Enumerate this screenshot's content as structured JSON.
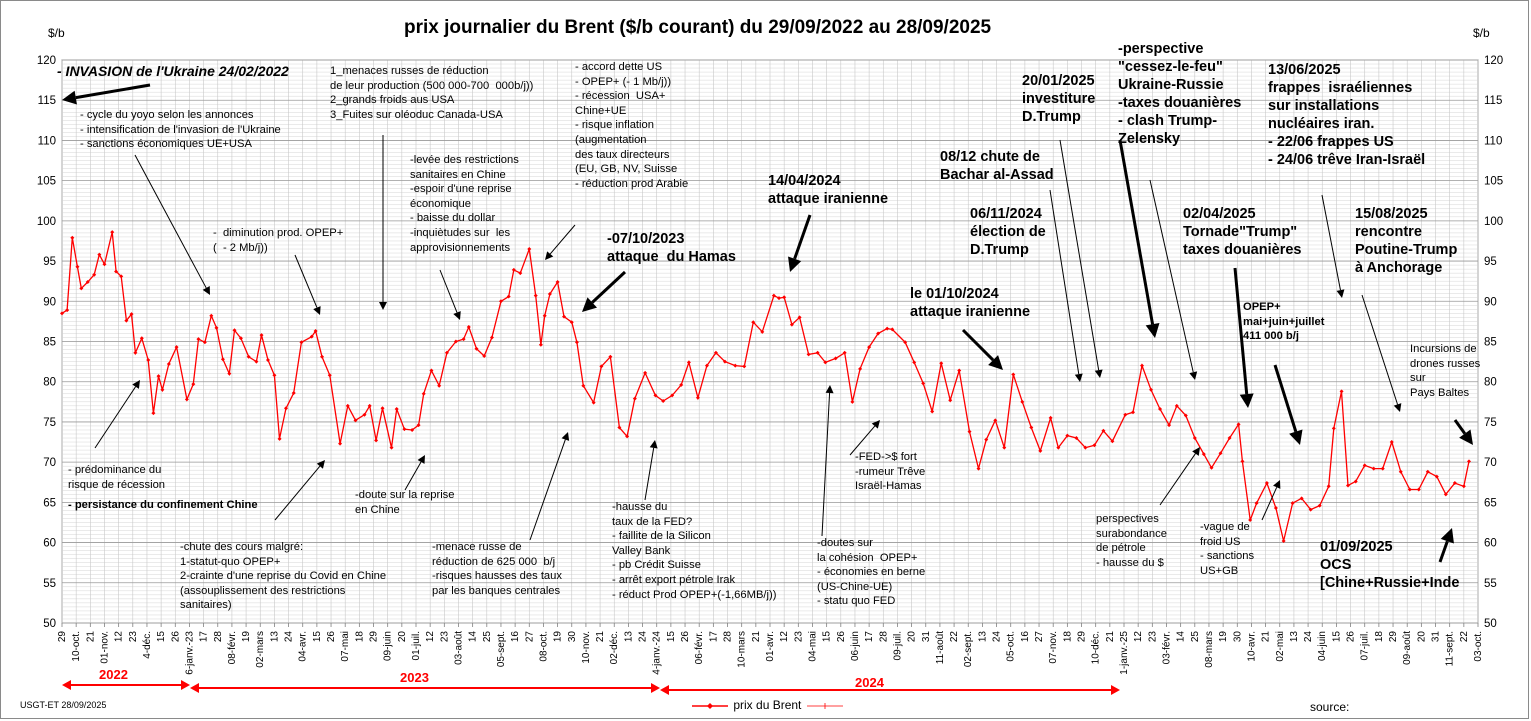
{
  "chart_data": {
    "type": "line",
    "title": "prix  journalier du  Brent ($/b courant) du 29/09/2022 au  28/09/2025",
    "ylabel_left": "$/b",
    "ylabel_right": "$/b",
    "ylim": [
      50,
      120
    ],
    "yticks": [
      50,
      55,
      60,
      65,
      70,
      75,
      80,
      85,
      90,
      95,
      100,
      105,
      110,
      115,
      120
    ],
    "grid": true,
    "legend_position": "bottom-center",
    "x_date_range": [
      "2022-09-29",
      "2025-10-03"
    ],
    "x_tick_labels": [
      "29",
      "10-oct.",
      "21",
      "01-nov.",
      "12",
      "23",
      "4-déc.",
      "15",
      "26",
      "6-janv.-23",
      "17",
      "28",
      "08-févr.",
      "19",
      "02-mars",
      "13",
      "24",
      "04-avr.",
      "15",
      "26",
      "07-mai",
      "18",
      "29",
      "09-juin",
      "20",
      "01-juil.",
      "12",
      "23",
      "03-août",
      "14",
      "25",
      "05-sept.",
      "16",
      "27",
      "08-oct.",
      "19",
      "30",
      "10-nov.",
      "21",
      "02-déc.",
      "13",
      "24",
      "4-janv.-24",
      "15",
      "26",
      "06-févr.",
      "17",
      "28",
      "10-mars",
      "21",
      "01-avr.",
      "12",
      "23",
      "04-mai",
      "15",
      "26",
      "06-juin",
      "17",
      "28",
      "09-juil.",
      "20",
      "31",
      "11-août",
      "22",
      "02-sept.",
      "13",
      "24",
      "05-oct.",
      "16",
      "27",
      "07-nov.",
      "18",
      "29",
      "10-déc.",
      "21",
      "1-janv.-25",
      "12",
      "23",
      "03-févr.",
      "14",
      "25",
      "08-mars",
      "19",
      "30",
      "10-avr.",
      "21",
      "02-mai",
      "13",
      "24",
      "04-juin",
      "15",
      "26",
      "07-juil.",
      "18",
      "29",
      "09-août",
      "20",
      "31",
      "11-sept.",
      "22",
      "03-oct."
    ],
    "series": [
      {
        "name": "prix du Brent",
        "color": "#ff0000",
        "points": [
          [
            "2022-09-29",
            88.5
          ],
          [
            "2022-10-03",
            88.9
          ],
          [
            "2022-10-07",
            97.9
          ],
          [
            "2022-10-11",
            94.3
          ],
          [
            "2022-10-14",
            91.6
          ],
          [
            "2022-10-19",
            92.4
          ],
          [
            "2022-10-24",
            93.3
          ],
          [
            "2022-10-28",
            95.8
          ],
          [
            "2022-11-01",
            94.6
          ],
          [
            "2022-11-07",
            98.6
          ],
          [
            "2022-11-10",
            93.7
          ],
          [
            "2022-11-14",
            93.1
          ],
          [
            "2022-11-18",
            87.6
          ],
          [
            "2022-11-22",
            88.4
          ],
          [
            "2022-11-25",
            83.6
          ],
          [
            "2022-11-30",
            85.4
          ],
          [
            "2022-12-05",
            82.7
          ],
          [
            "2022-12-09",
            76.1
          ],
          [
            "2022-12-13",
            80.7
          ],
          [
            "2022-12-16",
            79.0
          ],
          [
            "2022-12-21",
            82.2
          ],
          [
            "2022-12-27",
            84.3
          ],
          [
            "2023-01-04",
            77.8
          ],
          [
            "2023-01-09",
            79.7
          ],
          [
            "2023-01-13",
            85.3
          ],
          [
            "2023-01-18",
            84.9
          ],
          [
            "2023-01-23",
            88.2
          ],
          [
            "2023-01-27",
            86.7
          ],
          [
            "2023-02-01",
            82.8
          ],
          [
            "2023-02-06",
            81.0
          ],
          [
            "2023-02-10",
            86.4
          ],
          [
            "2023-02-15",
            85.4
          ],
          [
            "2023-02-21",
            83.1
          ],
          [
            "2023-02-27",
            82.5
          ],
          [
            "2023-03-03",
            85.8
          ],
          [
            "2023-03-08",
            82.7
          ],
          [
            "2023-03-13",
            80.8
          ],
          [
            "2023-03-17",
            72.9
          ],
          [
            "2023-03-22",
            76.7
          ],
          [
            "2023-03-28",
            78.6
          ],
          [
            "2023-04-03",
            84.9
          ],
          [
            "2023-04-11",
            85.6
          ],
          [
            "2023-04-14",
            86.3
          ],
          [
            "2023-04-19",
            83.1
          ],
          [
            "2023-04-25",
            80.8
          ],
          [
            "2023-05-03",
            72.3
          ],
          [
            "2023-05-09",
            77.0
          ],
          [
            "2023-05-15",
            75.2
          ],
          [
            "2023-05-22",
            75.9
          ],
          [
            "2023-05-26",
            77.0
          ],
          [
            "2023-05-31",
            72.7
          ],
          [
            "2023-06-05",
            76.7
          ],
          [
            "2023-06-12",
            71.8
          ],
          [
            "2023-06-16",
            76.6
          ],
          [
            "2023-06-22",
            74.1
          ],
          [
            "2023-06-28",
            74.0
          ],
          [
            "2023-07-03",
            74.6
          ],
          [
            "2023-07-07",
            78.5
          ],
          [
            "2023-07-13",
            81.4
          ],
          [
            "2023-07-19",
            79.5
          ],
          [
            "2023-07-25",
            83.6
          ],
          [
            "2023-08-01",
            85.0
          ],
          [
            "2023-08-07",
            85.3
          ],
          [
            "2023-08-11",
            86.8
          ],
          [
            "2023-08-17",
            84.1
          ],
          [
            "2023-08-23",
            83.2
          ],
          [
            "2023-08-29",
            85.5
          ],
          [
            "2023-09-05",
            90.0
          ],
          [
            "2023-09-11",
            90.6
          ],
          [
            "2023-09-15",
            93.9
          ],
          [
            "2023-09-20",
            93.5
          ],
          [
            "2023-09-27",
            96.5
          ],
          [
            "2023-10-02",
            90.7
          ],
          [
            "2023-10-06",
            84.6
          ],
          [
            "2023-10-09",
            88.2
          ],
          [
            "2023-10-13",
            90.9
          ],
          [
            "2023-10-19",
            92.4
          ],
          [
            "2023-10-24",
            88.1
          ],
          [
            "2023-10-30",
            87.4
          ],
          [
            "2023-11-03",
            84.9
          ],
          [
            "2023-11-08",
            79.5
          ],
          [
            "2023-11-16",
            77.4
          ],
          [
            "2023-11-22",
            81.9
          ],
          [
            "2023-11-29",
            83.1
          ],
          [
            "2023-12-06",
            74.3
          ],
          [
            "2023-12-12",
            73.2
          ],
          [
            "2023-12-18",
            77.9
          ],
          [
            "2023-12-26",
            81.1
          ],
          [
            "2024-01-03",
            78.3
          ],
          [
            "2024-01-09",
            77.6
          ],
          [
            "2024-01-16",
            78.3
          ],
          [
            "2024-01-23",
            79.6
          ],
          [
            "2024-01-29",
            82.4
          ],
          [
            "2024-02-05",
            78.0
          ],
          [
            "2024-02-12",
            82.0
          ],
          [
            "2024-02-19",
            83.6
          ],
          [
            "2024-02-26",
            82.5
          ],
          [
            "2024-03-05",
            82.0
          ],
          [
            "2024-03-12",
            81.9
          ],
          [
            "2024-03-19",
            87.4
          ],
          [
            "2024-03-26",
            86.2
          ],
          [
            "2024-04-04",
            90.7
          ],
          [
            "2024-04-08",
            90.4
          ],
          [
            "2024-04-12",
            90.5
          ],
          [
            "2024-04-18",
            87.1
          ],
          [
            "2024-04-24",
            88.0
          ],
          [
            "2024-05-01",
            83.4
          ],
          [
            "2024-05-08",
            83.6
          ],
          [
            "2024-05-14",
            82.4
          ],
          [
            "2024-05-22",
            82.9
          ],
          [
            "2024-05-29",
            83.6
          ],
          [
            "2024-06-04",
            77.5
          ],
          [
            "2024-06-10",
            81.6
          ],
          [
            "2024-06-17",
            84.3
          ],
          [
            "2024-06-24",
            86.0
          ],
          [
            "2024-07-01",
            86.6
          ],
          [
            "2024-07-05",
            86.5
          ],
          [
            "2024-07-15",
            84.9
          ],
          [
            "2024-07-22",
            82.4
          ],
          [
            "2024-07-29",
            79.8
          ],
          [
            "2024-08-05",
            76.3
          ],
          [
            "2024-08-12",
            82.3
          ],
          [
            "2024-08-19",
            77.7
          ],
          [
            "2024-08-26",
            81.4
          ],
          [
            "2024-09-03",
            73.8
          ],
          [
            "2024-09-10",
            69.2
          ],
          [
            "2024-09-16",
            72.8
          ],
          [
            "2024-09-23",
            75.2
          ],
          [
            "2024-09-30",
            71.8
          ],
          [
            "2024-10-07",
            80.9
          ],
          [
            "2024-10-14",
            77.5
          ],
          [
            "2024-10-21",
            74.3
          ],
          [
            "2024-10-28",
            71.4
          ],
          [
            "2024-11-05",
            75.5
          ],
          [
            "2024-11-11",
            71.8
          ],
          [
            "2024-11-18",
            73.3
          ],
          [
            "2024-11-25",
            73.0
          ],
          [
            "2024-12-02",
            71.8
          ],
          [
            "2024-12-09",
            72.1
          ],
          [
            "2024-12-16",
            73.9
          ],
          [
            "2024-12-23",
            72.6
          ],
          [
            "2025-01-02",
            75.9
          ],
          [
            "2025-01-08",
            76.2
          ],
          [
            "2025-01-15",
            82.0
          ],
          [
            "2025-01-22",
            79.0
          ],
          [
            "2025-01-29",
            76.6
          ],
          [
            "2025-02-05",
            74.6
          ],
          [
            "2025-02-11",
            77.0
          ],
          [
            "2025-02-18",
            75.8
          ],
          [
            "2025-02-25",
            73.0
          ],
          [
            "2025-03-04",
            71.0
          ],
          [
            "2025-03-10",
            69.3
          ],
          [
            "2025-03-17",
            71.1
          ],
          [
            "2025-03-24",
            73.0
          ],
          [
            "2025-03-31",
            74.7
          ],
          [
            "2025-04-03",
            70.1
          ],
          [
            "2025-04-09",
            62.8
          ],
          [
            "2025-04-14",
            64.9
          ],
          [
            "2025-04-22",
            67.4
          ],
          [
            "2025-04-29",
            64.3
          ],
          [
            "2025-05-05",
            60.2
          ],
          [
            "2025-05-12",
            64.9
          ],
          [
            "2025-05-19",
            65.5
          ],
          [
            "2025-05-26",
            64.1
          ],
          [
            "2025-06-02",
            64.6
          ],
          [
            "2025-06-09",
            67.0
          ],
          [
            "2025-06-13",
            74.2
          ],
          [
            "2025-06-19",
            78.8
          ],
          [
            "2025-06-24",
            67.1
          ],
          [
            "2025-06-30",
            67.6
          ],
          [
            "2025-07-07",
            69.6
          ],
          [
            "2025-07-14",
            69.2
          ],
          [
            "2025-07-21",
            69.2
          ],
          [
            "2025-07-28",
            72.5
          ],
          [
            "2025-08-04",
            68.8
          ],
          [
            "2025-08-11",
            66.6
          ],
          [
            "2025-08-18",
            66.6
          ],
          [
            "2025-08-25",
            68.8
          ],
          [
            "2025-09-01",
            68.2
          ],
          [
            "2025-09-08",
            66.0
          ],
          [
            "2025-09-15",
            67.4
          ],
          [
            "2025-09-22",
            67.0
          ],
          [
            "2025-09-26",
            70.1
          ]
        ]
      }
    ],
    "year_labels": [
      "2022",
      "2023",
      "2024"
    ],
    "legend": [
      "prix du Brent"
    ]
  },
  "annotations": [
    {
      "id": "ann-invasion",
      "text": "- INVASION de l'Ukraine 24/02/2022",
      "style": "bi"
    },
    {
      "id": "ann-yoyo",
      "text": "- cycle du yoyo selon les annonces\n- intensification de l'invasion de l'Ukraine\n- sanctions économiques UE+USA",
      "style": "n"
    },
    {
      "id": "ann-menaces",
      "text": "1_menaces russes de réduction\nde leur production (500 000-700  000b/j))\n2_grands froids aus USA\n3_Fuites sur oléoduc Canada-USA",
      "style": "n"
    },
    {
      "id": "ann-accord",
      "text": "- accord dette US\n- OPEP+ (- 1 Mb/j))\n- récession  USA+\nChine+UE\n- risque inflation\n(augmentation\ndes taux directeurs\n(EU, GB, NV, Suisse\n- réduction prod Arabie",
      "style": "n"
    },
    {
      "id": "ann-levee",
      "text": "-levée des restrictions\nsanitaires en Chine\n-espoir d'une reprise\néconomique\n- baisse du dollar\n-inquiètudes sur  les\napprovisionnements",
      "style": "n"
    },
    {
      "id": "ann-opep2",
      "text": "-  diminution prod. OPEP+\n(  - 2 Mb/j))",
      "style": "n"
    },
    {
      "id": "ann-avril24",
      "text": "14/04/2024\nattaque iranienne",
      "style": "b"
    },
    {
      "id": "ann-hamas",
      "text": "-07/10/2023\nattaque  du Hamas",
      "style": "b"
    },
    {
      "id": "ann-cessez",
      "text": "-perspective\n\"cessez-le-feu\"\nUkraine-Russie\n-taxes douanières\n- clash Trump-\nZelensky",
      "style": "b"
    },
    {
      "id": "ann-investiture",
      "text": "20/01/2025\ninvestiture\nD.Trump",
      "style": "b"
    },
    {
      "id": "ann-bachar",
      "text": "08/12 chute de\nBachar al-Assad",
      "style": "b"
    },
    {
      "id": "ann-election",
      "text": "06/11/2024\nélection de\nD.Trump",
      "style": "b"
    },
    {
      "id": "ann-oct24",
      "text": "le 01/10/2024\nattaque iranienne",
      "style": "b"
    },
    {
      "id": "ann-israel",
      "text": "13/06/2025\nfrappes  israéliennes\nsur installations\nnucléaires iran.\n- 22/06 frappes US\n- 24/06 trêve Iran-Israël",
      "style": "b"
    },
    {
      "id": "ann-tornade",
      "text": "02/04/2025\nTornade\"Trump\"\ntaxes douanières",
      "style": "b"
    },
    {
      "id": "ann-alaska",
      "text": "15/08/2025\nrencontre\nPoutine-Trump\nà Anchorage",
      "style": "b"
    },
    {
      "id": "ann-opep3",
      "text": "OPEP+\nmai+juin+juillet\n411 000 b/j",
      "style": "sb"
    },
    {
      "id": "ann-drones",
      "text": "Incursions de\ndrones russes\nsur\nPays Baltes",
      "style": "n"
    },
    {
      "id": "ann-recession",
      "text": "- prédominance du\nrisque de récession",
      "style": "n"
    },
    {
      "id": "ann-confinement",
      "text": "- persistance du confinement Chine",
      "style": "sb"
    },
    {
      "id": "ann-chute",
      "text": "-chute des cours malgré:\n1-statut-quo OPEP+\n2-crainte d'une reprise du Covid en Chine\n(assouplissement des restrictions\nsanitaires)",
      "style": "n"
    },
    {
      "id": "ann-doute",
      "text": "-doute sur la reprise\nen Chine",
      "style": "n"
    },
    {
      "id": "ann-menace625",
      "text": "-menace russe de\nréduction de 625 000  b/j\n-risques hausses des taux\npar les banques centrales",
      "style": "n"
    },
    {
      "id": "ann-fed",
      "text": "-hausse du\ntaux de la FED?\n- faillite de la Silicon\nValley Bank\n- pb Crédit Suisse\n- arrêt export pétrole Irak\n- réduct Prod OPEP+(-1,66MB/j))",
      "style": "n"
    },
    {
      "id": "ann-fed2",
      "text": "-FED->$ fort\n-rumeur Trêve\nIsraël-Hamas",
      "style": "n"
    },
    {
      "id": "ann-doutes",
      "text": "-doutes sur\nla cohésion  OPEP+\n- économies en berne\n(US-Chine-UE)\n- statu quo FED",
      "style": "n"
    },
    {
      "id": "ann-surabondance",
      "text": "perspectives\nsurabondance\nde pétrole\n- hausse du $",
      "style": "n"
    },
    {
      "id": "ann-froid",
      "text": "-vague de\nfroid US\n- sanctions\nUS+GB",
      "style": "n"
    },
    {
      "id": "ann-ocs",
      "text": "01/09/2025\nOCS\n[Chine+Russie+Inde",
      "style": "b"
    }
  ],
  "footer_left": "USGT-ET  28/09/2025",
  "footer_right": "source:"
}
